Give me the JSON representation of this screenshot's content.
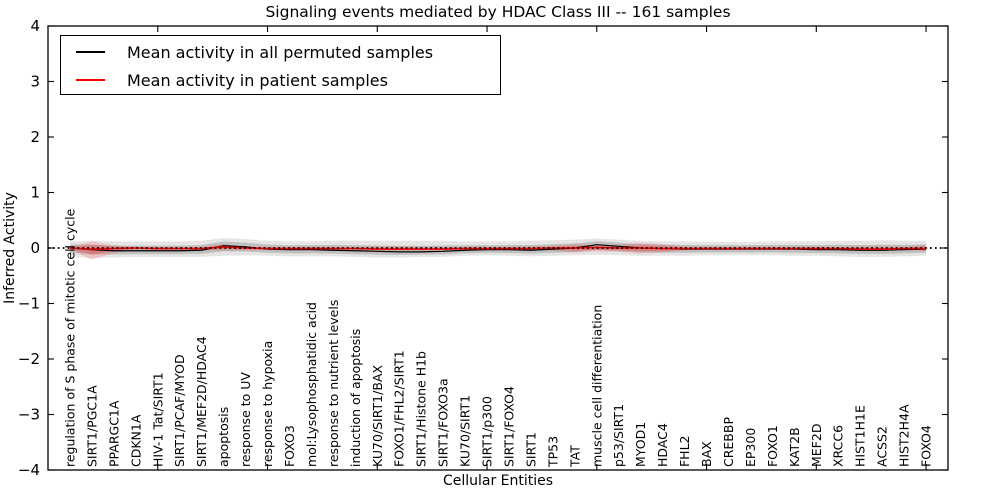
{
  "chart_data": {
    "type": "line",
    "title": "Signaling events mediated by HDAC Class III -- 161 samples",
    "xlabel": "Cellular Entities",
    "ylabel": "Inferred Activity",
    "ylim": [
      -4,
      4
    ],
    "yticks": [
      4,
      3,
      2,
      1,
      0,
      -1,
      -2,
      -3,
      -4
    ],
    "x_major_tick_indices": [
      5,
      10,
      15,
      20,
      25,
      30,
      35,
      40
    ],
    "grid": false,
    "legend_position": "upper left",
    "zero_line": {
      "style": "dotted",
      "color": "#000000",
      "y": 0
    },
    "categories": [
      "regulation of S phase of mitotic cell cycle",
      "SIRT1/PGC1A",
      "PPARGC1A",
      "CDKN1A",
      "HIV-1 Tat/SIRT1",
      "SIRT1/PCAF/MYOD",
      "SIRT1/MEF2D/HDAC4",
      "apoptosis",
      "response to UV",
      "response to hypoxia",
      "FOXO3",
      "mol:Lysophosphatidic acid",
      "response to nutrient levels",
      "induction of apoptosis",
      "KU70/SIRT1/BAX",
      "FOXO1/FHL2/SIRT1",
      "SIRT1/Histone H1b",
      "SIRT1/FOXO3a",
      "KU70/SIRT1",
      "SIRT1/p300",
      "SIRT1/FOXO4",
      "SIRT1",
      "TP53",
      "TAT",
      "muscle cell differentiation",
      "p53/SIRT1",
      "MYOD1",
      "HDAC4",
      "FHL2",
      "BAX",
      "CREBBP",
      "EP300",
      "FOXO1",
      "KAT2B",
      "MEF2D",
      "XRCC6",
      "HIST1H1E",
      "ACSS2",
      "HIST2H4A",
      "FOXO4"
    ],
    "series": [
      {
        "name": "Mean activity in all permuted samples",
        "color": "#000000",
        "band_color": "#000000",
        "values": [
          0.0,
          -0.03,
          -0.05,
          -0.05,
          -0.05,
          -0.05,
          -0.04,
          0.04,
          0.02,
          -0.02,
          -0.03,
          -0.03,
          -0.04,
          -0.05,
          -0.06,
          -0.07,
          -0.07,
          -0.06,
          -0.04,
          -0.03,
          -0.03,
          -0.04,
          -0.02,
          0.0,
          0.06,
          0.03,
          0.0,
          -0.01,
          -0.02,
          -0.02,
          -0.02,
          -0.02,
          -0.02,
          -0.02,
          -0.03,
          -0.03,
          -0.04,
          -0.04,
          -0.03,
          -0.02
        ],
        "band_upper": [
          0.12,
          0.13,
          0.12,
          0.12,
          0.12,
          0.12,
          0.13,
          0.18,
          0.16,
          0.13,
          0.12,
          0.12,
          0.13,
          0.13,
          0.13,
          0.13,
          0.13,
          0.13,
          0.12,
          0.12,
          0.12,
          0.13,
          0.14,
          0.15,
          0.17,
          0.15,
          0.13,
          0.12,
          0.12,
          0.11,
          0.11,
          0.11,
          0.12,
          0.12,
          0.12,
          0.13,
          0.13,
          0.14,
          0.13,
          0.13
        ],
        "band_lower": [
          -0.15,
          -0.18,
          -0.17,
          -0.16,
          -0.16,
          -0.16,
          -0.16,
          -0.14,
          -0.13,
          -0.14,
          -0.15,
          -0.15,
          -0.15,
          -0.16,
          -0.17,
          -0.17,
          -0.16,
          -0.16,
          -0.14,
          -0.13,
          -0.14,
          -0.15,
          -0.14,
          -0.13,
          -0.12,
          -0.13,
          -0.14,
          -0.14,
          -0.14,
          -0.13,
          -0.13,
          -0.13,
          -0.13,
          -0.14,
          -0.14,
          -0.15,
          -0.16,
          -0.16,
          -0.15,
          -0.14
        ]
      },
      {
        "name": "Mean activity in patient samples",
        "color": "#ff0000",
        "band_color": "#ff0000",
        "values": [
          0.0,
          -0.02,
          -0.01,
          0.0,
          -0.01,
          -0.01,
          -0.01,
          0.02,
          0.0,
          -0.01,
          -0.01,
          -0.01,
          -0.01,
          -0.01,
          -0.02,
          -0.02,
          -0.02,
          -0.02,
          -0.01,
          -0.01,
          -0.01,
          -0.01,
          0.0,
          0.0,
          0.01,
          0.0,
          0.0,
          -0.01,
          -0.01,
          -0.01,
          -0.01,
          -0.01,
          -0.01,
          -0.01,
          -0.01,
          -0.01,
          -0.02,
          -0.02,
          -0.01,
          -0.01
        ],
        "band_upper": [
          0.02,
          0.12,
          0.05,
          0.02,
          0.02,
          0.02,
          0.02,
          0.07,
          0.03,
          0.02,
          0.02,
          0.02,
          0.02,
          0.02,
          0.03,
          0.03,
          0.02,
          0.02,
          0.02,
          0.02,
          0.02,
          0.03,
          0.04,
          0.07,
          0.05,
          0.06,
          0.09,
          0.07,
          0.03,
          0.02,
          0.02,
          0.02,
          0.02,
          0.02,
          0.02,
          0.02,
          0.03,
          0.03,
          0.02,
          0.06
        ],
        "band_lower": [
          -0.03,
          -0.21,
          -0.09,
          -0.03,
          -0.04,
          -0.04,
          -0.04,
          -0.05,
          -0.04,
          -0.04,
          -0.04,
          -0.03,
          -0.03,
          -0.04,
          -0.05,
          -0.05,
          -0.05,
          -0.05,
          -0.04,
          -0.03,
          -0.04,
          -0.04,
          -0.05,
          -0.08,
          -0.06,
          -0.07,
          -0.1,
          -0.08,
          -0.04,
          -0.03,
          -0.03,
          -0.03,
          -0.03,
          -0.03,
          -0.03,
          -0.04,
          -0.04,
          -0.04,
          -0.03,
          -0.06
        ]
      }
    ]
  }
}
